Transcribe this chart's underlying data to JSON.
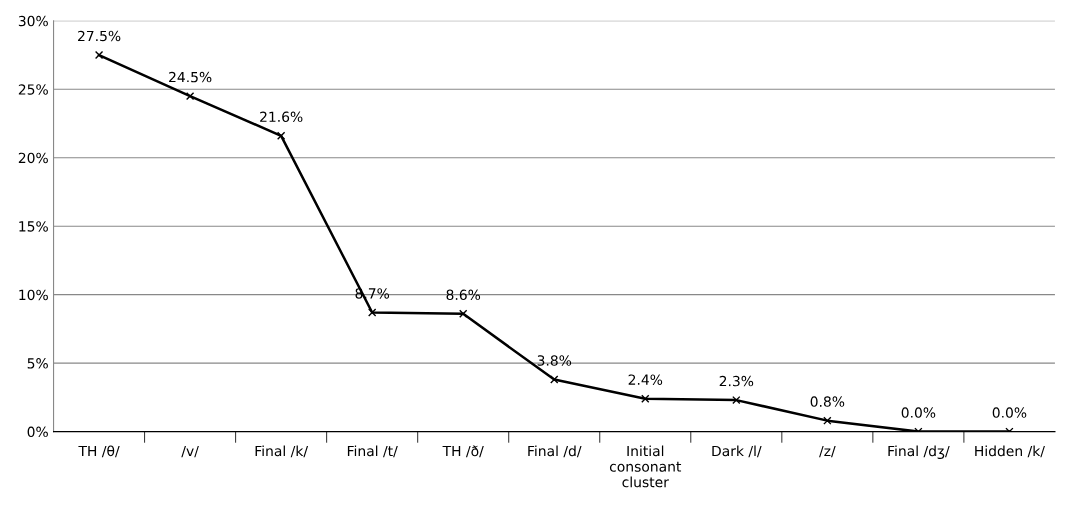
{
  "chart_data": {
    "type": "line",
    "categories": [
      "TH /θ/",
      "/v/",
      "Final /k/",
      "Final /t/",
      "TH /ð/",
      "Final /d/",
      "Initial\nconsonant\ncluster",
      "Dark /l/",
      "/z/",
      "Final /dʒ/",
      "Hidden /k/"
    ],
    "series": [
      {
        "color": "#000000",
        "values": [
          27.5,
          24.5,
          21.6,
          8.7,
          8.6,
          3.8,
          2.4,
          2.3,
          0.8,
          0.0,
          0.0
        ],
        "value_labels": [
          "27.5%",
          "24.5%",
          "21.6%",
          "8.7%",
          "8.6%",
          "3.8%",
          "2.4%",
          "2.3%",
          "0.8%",
          "0.0%",
          "0.0%"
        ]
      }
    ],
    "ylim": [
      0,
      30
    ],
    "yticks": [
      {
        "value": 0,
        "label": "0%"
      },
      {
        "value": 5,
        "label": "5%"
      },
      {
        "value": 10,
        "label": "10%"
      },
      {
        "value": 15,
        "label": "15%"
      },
      {
        "value": 20,
        "label": "20%"
      },
      {
        "value": 25,
        "label": "25%"
      },
      {
        "value": 30,
        "label": "30%"
      }
    ],
    "grid": "y",
    "marker": "cross",
    "line_style": "solid",
    "legend": false
  }
}
